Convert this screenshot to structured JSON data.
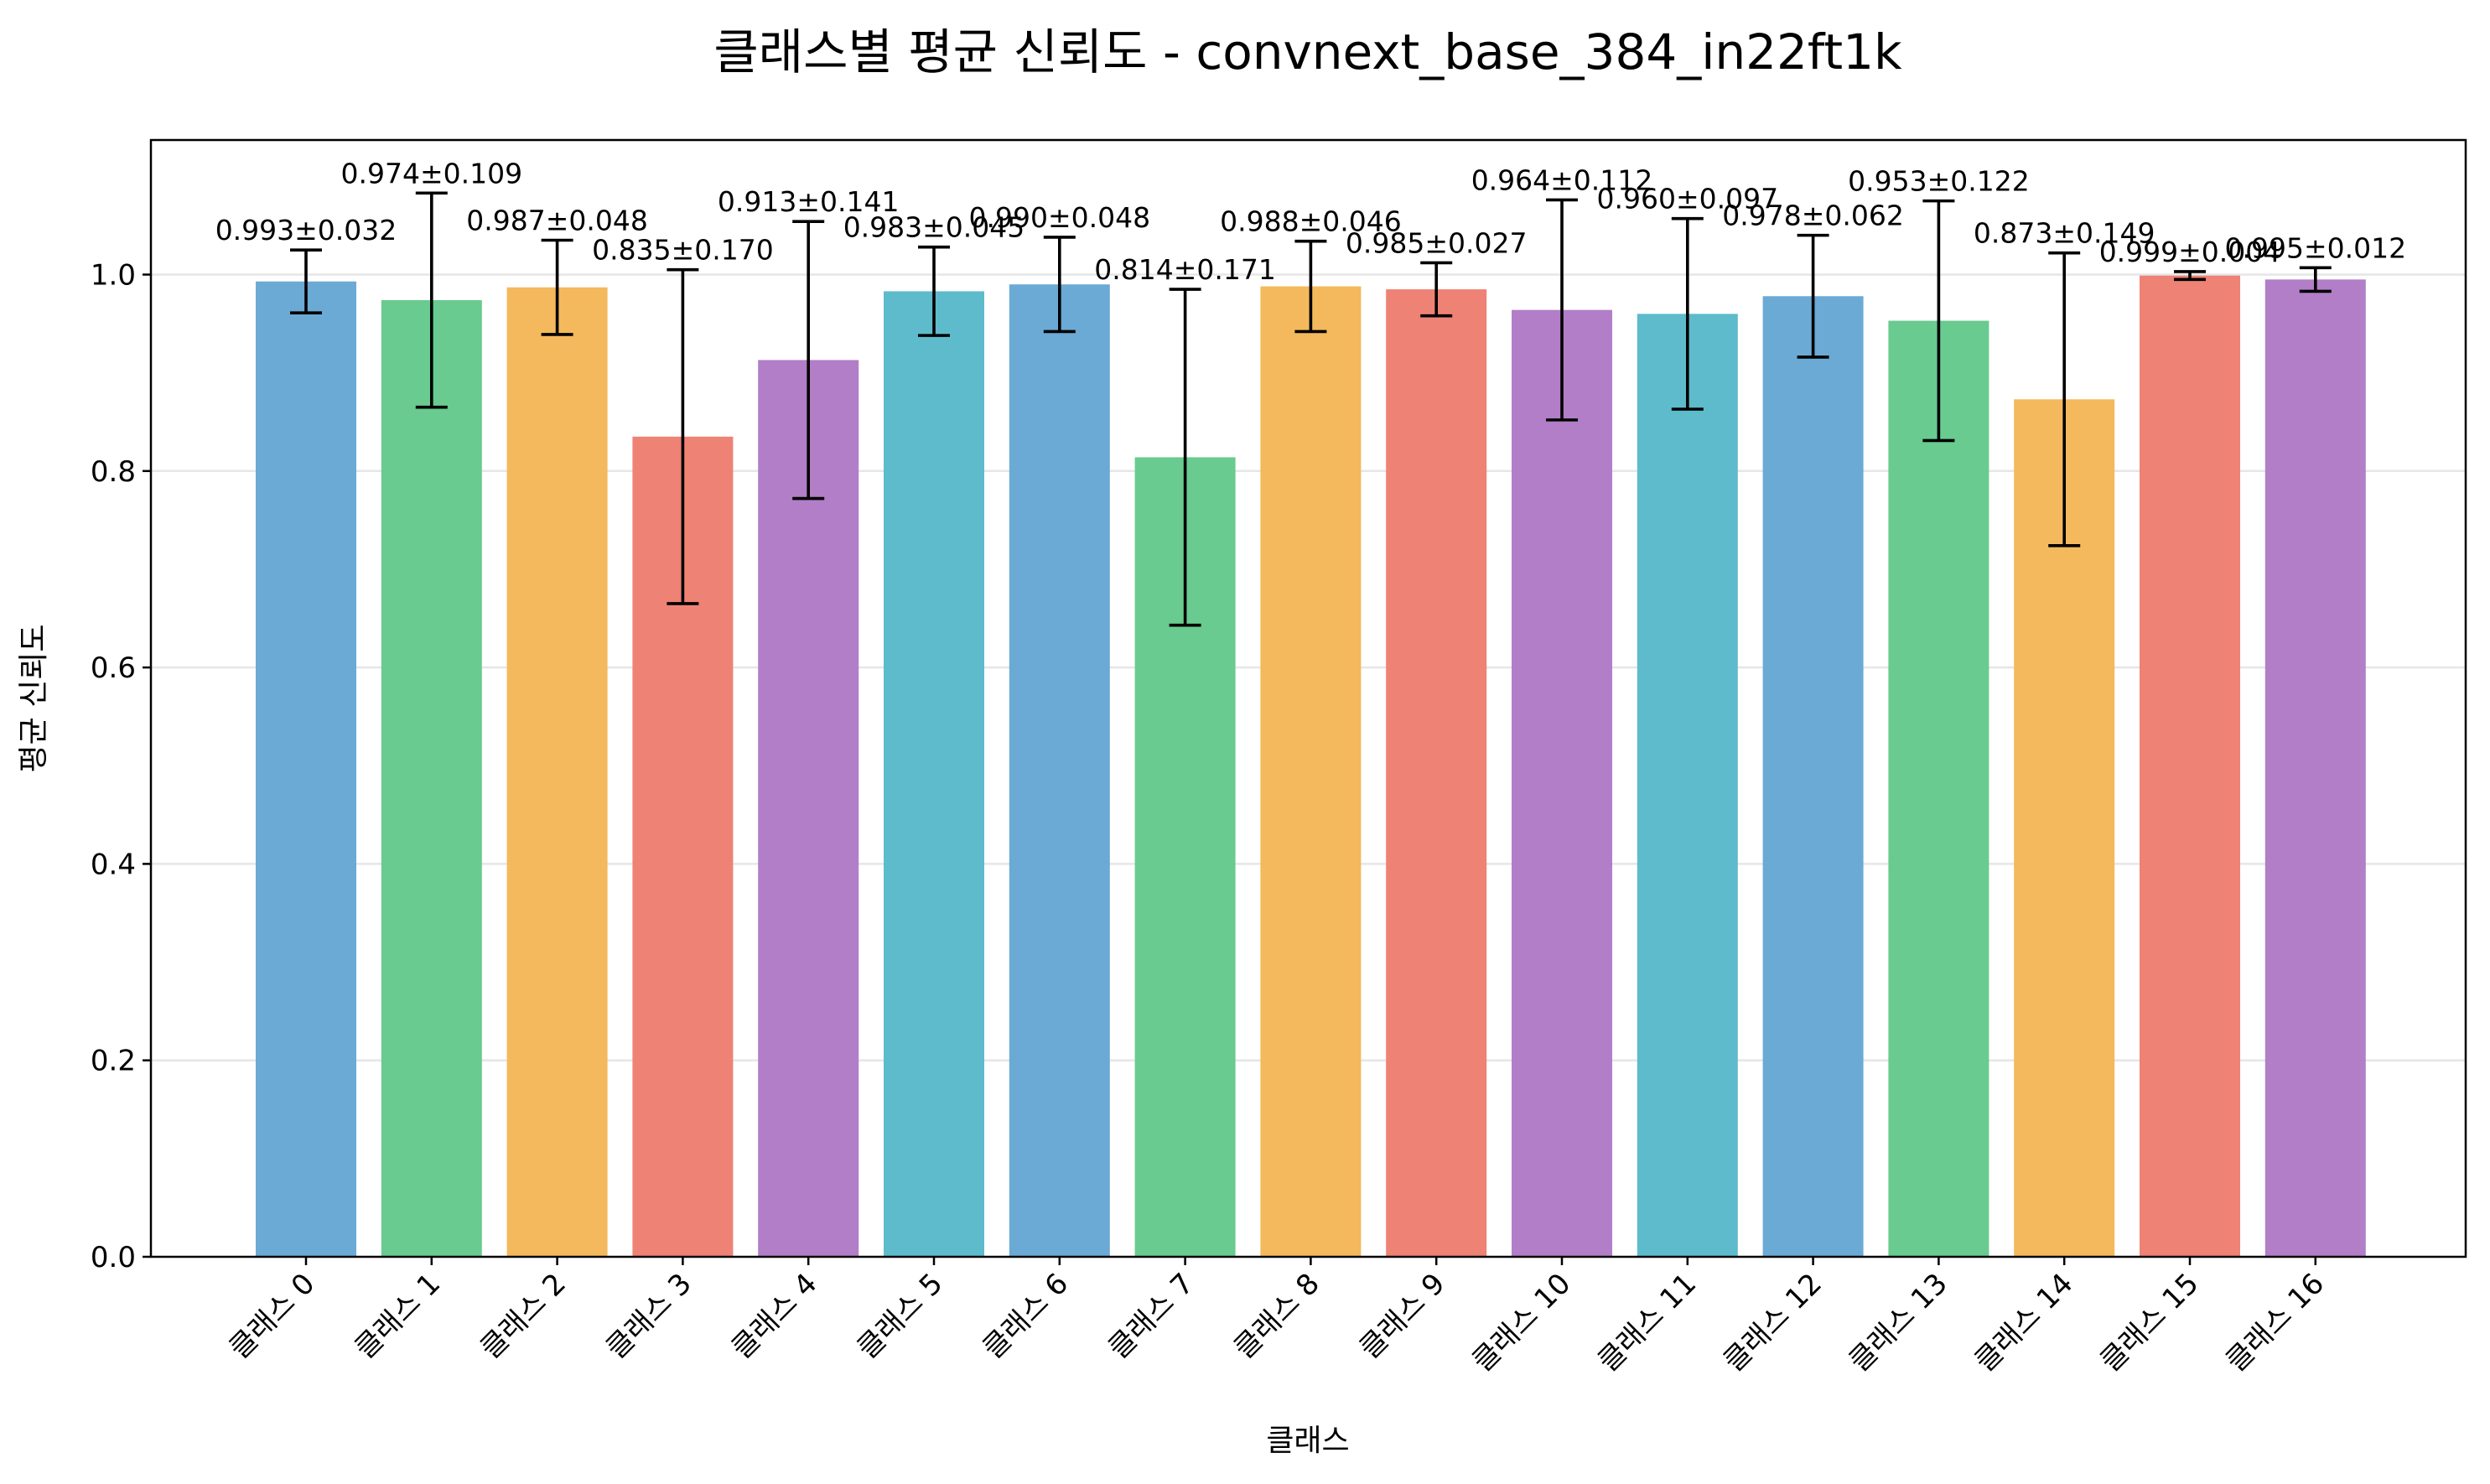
{
  "chart_data": {
    "type": "bar",
    "title": "클래스별 평균 신뢰도 - convnext_base_384_in22ft1k",
    "xlabel": "클래스",
    "ylabel": "평균 신뢰도",
    "ylim": [
      0,
      1.137
    ],
    "yticks": [
      "0.0",
      "0.2",
      "0.4",
      "0.6",
      "0.8",
      "1.0"
    ],
    "grid": "horizontal",
    "categories": [
      "클래스 0",
      "클래스 1",
      "클래스 2",
      "클래스 3",
      "클래스 4",
      "클래스 5",
      "클래스 6",
      "클래스 7",
      "클래스 8",
      "클래스 9",
      "클래스 10",
      "클래스 11",
      "클래스 12",
      "클래스 13",
      "클래스 14",
      "클래스 15",
      "클래스 16"
    ],
    "values": [
      0.993,
      0.974,
      0.987,
      0.835,
      0.913,
      0.983,
      0.99,
      0.814,
      0.988,
      0.985,
      0.964,
      0.96,
      0.978,
      0.953,
      0.873,
      0.999,
      0.995
    ],
    "errors": [
      0.032,
      0.109,
      0.048,
      0.17,
      0.141,
      0.045,
      0.048,
      0.171,
      0.046,
      0.027,
      0.112,
      0.097,
      0.062,
      0.122,
      0.149,
      0.004,
      0.012
    ],
    "data_labels": [
      "0.993±0.032",
      "0.974±0.109",
      "0.987±0.048",
      "0.835±0.170",
      "0.913±0.141",
      "0.983±0.045",
      "0.990±0.048",
      "0.814±0.171",
      "0.988±0.046",
      "0.985±0.027",
      "0.964±0.112",
      "0.960±0.097",
      "0.978±0.062",
      "0.953±0.122",
      "0.873±0.149",
      "0.999±0.004",
      "0.995±0.012"
    ],
    "colors": [
      "#6baad5",
      "#69cb8f",
      "#f4b95c",
      "#ee8275",
      "#b17ec7",
      "#5dbbcc",
      "#6baad5",
      "#69cb8f",
      "#f4b95c",
      "#ee8275",
      "#b17ec7",
      "#5dbbcc",
      "#6baad5",
      "#69cb8f",
      "#f4b95c",
      "#ee8275",
      "#b17ec7"
    ]
  }
}
